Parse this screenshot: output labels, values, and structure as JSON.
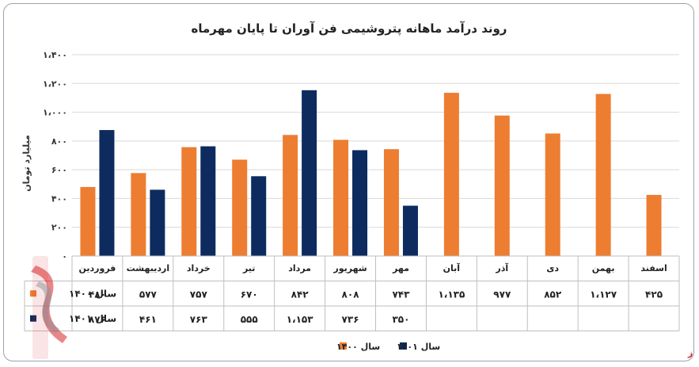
{
  "chart_data": {
    "type": "bar",
    "title": "روند درآمد ماهانه پتروشیمی فن آوران تا پایان مهرماه",
    "ylabel": "میلیارد تومان",
    "ylim": [
      0,
      1400
    ],
    "yticks": [
      "۰",
      "۲۰۰",
      "۴۰۰",
      "۶۰۰",
      "۸۰۰",
      "۱،۰۰۰",
      "۱،۲۰۰",
      "۱،۴۰۰"
    ],
    "ytick_values": [
      0,
      200,
      400,
      600,
      800,
      1000,
      1200,
      1400
    ],
    "categories": [
      "فروردین",
      "اردیبهشت",
      "خرداد",
      "تیر",
      "مرداد",
      "شهریور",
      "مهر",
      "آبان",
      "آذر",
      "دی",
      "بهمن",
      "اسفند"
    ],
    "series": [
      {
        "name": "سال ۱۴۰۰",
        "color": "#ed7d31",
        "values": [
          480,
          577,
          757,
          670,
          842,
          808,
          743,
          1135,
          977,
          852,
          1127,
          425
        ],
        "labels": [
          "۴۸۰",
          "۵۷۷",
          "۷۵۷",
          "۶۷۰",
          "۸۴۲",
          "۸۰۸",
          "۷۴۳",
          "۱،۱۳۵",
          "۹۷۷",
          "۸۵۲",
          "۱،۱۲۷",
          "۴۲۵"
        ]
      },
      {
        "name": "سال ۱۴۰۱",
        "color": "#0d2b5e",
        "values": [
          876,
          461,
          763,
          555,
          1153,
          736,
          350,
          null,
          null,
          null,
          null,
          null
        ],
        "labels": [
          "۸۷۶",
          "۴۶۱",
          "۷۶۳",
          "۵۵۵",
          "۱،۱۵۳",
          "۷۳۶",
          "۳۵۰",
          "",
          "",
          "",
          "",
          ""
        ]
      }
    ],
    "grid": true,
    "legend": "bottom",
    "data_table": true
  },
  "watermark": {
    "text": "بورس نیوز",
    "color": "#d6242a"
  }
}
